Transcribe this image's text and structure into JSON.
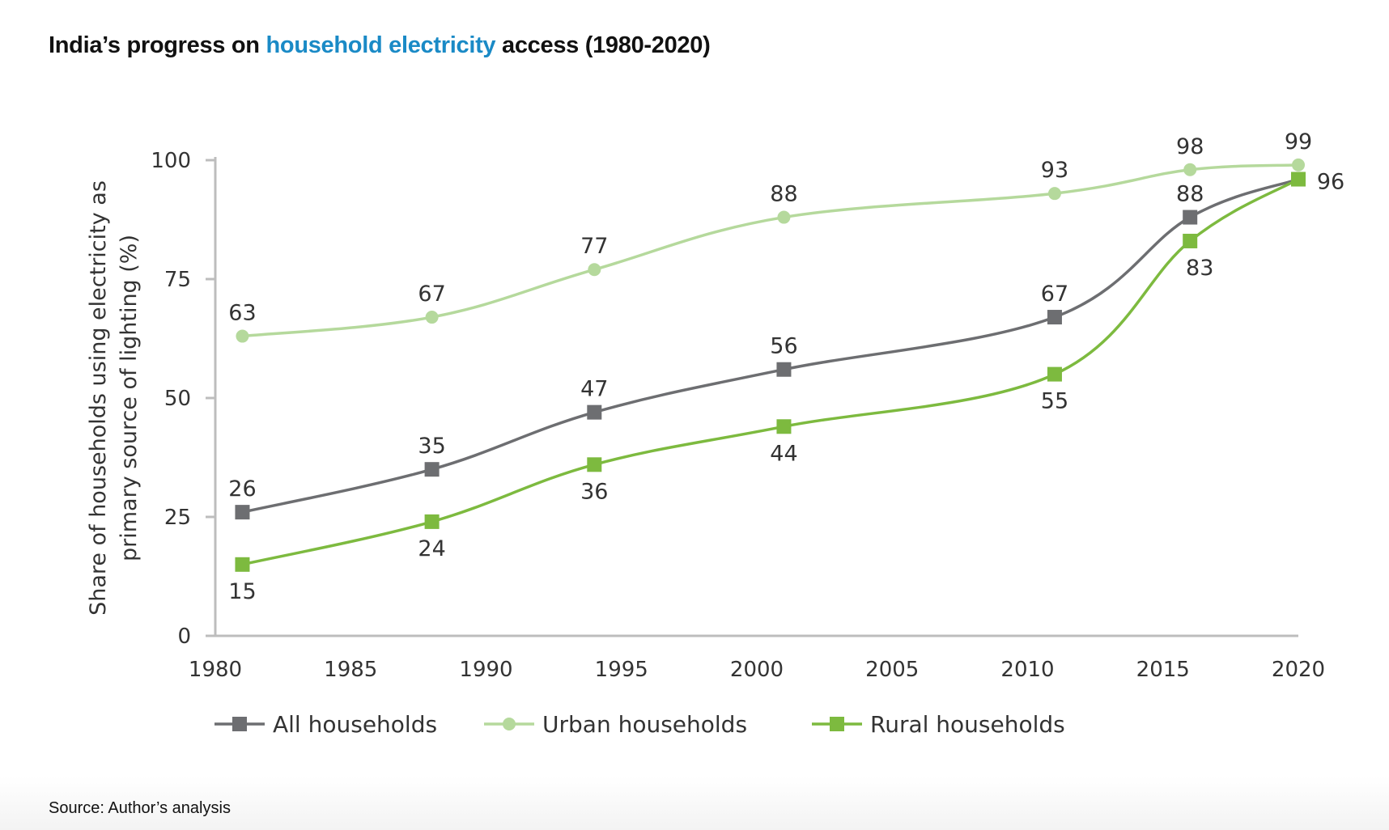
{
  "title": {
    "part1": "India’s progress on ",
    "highlight": "household electricity",
    "part2": " access (1980-2020)"
  },
  "source": "Source: Author’s analysis",
  "chart_data": {
    "type": "line",
    "title": "India’s progress on household electricity access (1980-2020)",
    "xlabel": "",
    "ylabel_lines": [
      "Share of households using electricity as",
      "primary source of lighting (%)"
    ],
    "xlim": [
      1980,
      2020
    ],
    "ylim": [
      0,
      100
    ],
    "xticks": [
      1980,
      1985,
      1990,
      1995,
      2000,
      2005,
      2010,
      2015,
      2020
    ],
    "yticks": [
      0,
      25,
      50,
      75,
      100
    ],
    "x": [
      1981,
      1988,
      1994,
      2001,
      2011,
      2016,
      2020
    ],
    "legend_position": "bottom",
    "series": [
      {
        "name": "All households",
        "marker": "square",
        "color": "#6d6e71",
        "values": [
          26,
          35,
          47,
          56,
          67,
          88,
          96
        ],
        "labels": [
          "26",
          "35",
          "47",
          "56",
          "67",
          "88",
          "96"
        ]
      },
      {
        "name": "Urban households",
        "marker": "circle",
        "color": "#b5d99c",
        "values": [
          63,
          67,
          77,
          88,
          93,
          98,
          99
        ],
        "labels": [
          "63",
          "67",
          "77",
          "88",
          "93",
          "98",
          "99"
        ]
      },
      {
        "name": "Rural households",
        "marker": "square",
        "color": "#7dba3f",
        "values": [
          15,
          24,
          36,
          44,
          55,
          83,
          96
        ],
        "labels": [
          "15",
          "24",
          "36",
          "44",
          "55",
          "83",
          null
        ]
      }
    ]
  }
}
